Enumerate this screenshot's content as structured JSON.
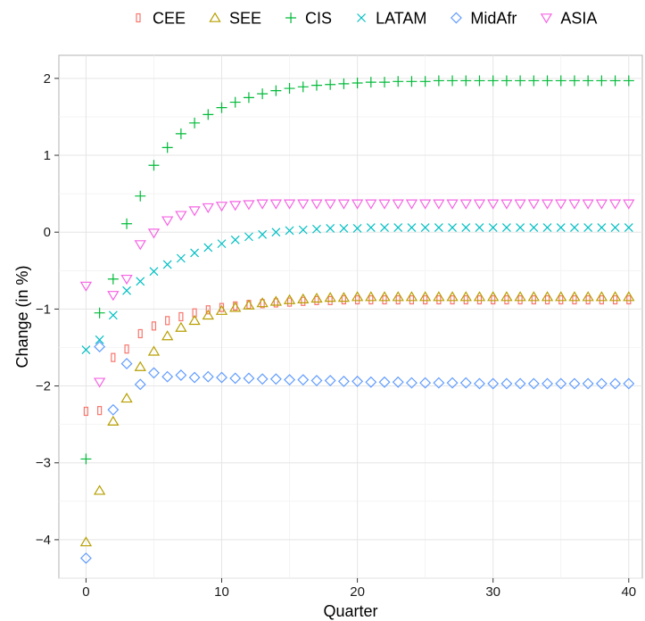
{
  "chart_data": {
    "type": "scatter",
    "title": "",
    "xlabel": "Quarter",
    "ylabel": "Change (in %)",
    "xlim": [
      -2,
      41
    ],
    "ylim": [
      -4.5,
      2.3
    ],
    "x_ticks": [
      0,
      10,
      20,
      30,
      40
    ],
    "y_ticks": [
      -4,
      -3,
      -2,
      -1,
      0,
      1,
      2
    ],
    "x_tick_labels": [
      "0",
      "10",
      "20",
      "30",
      "40"
    ],
    "y_tick_labels": [
      "−4",
      "−3",
      "−2",
      "−1",
      "0",
      "1",
      "2"
    ],
    "grid": true,
    "legend_position": "top",
    "x": [
      0,
      1,
      2,
      3,
      4,
      5,
      6,
      7,
      8,
      9,
      10,
      11,
      12,
      13,
      14,
      15,
      16,
      17,
      18,
      19,
      20,
      21,
      22,
      23,
      24,
      25,
      26,
      27,
      28,
      29,
      30,
      31,
      32,
      33,
      34,
      35,
      36,
      37,
      38,
      39,
      40
    ],
    "series": [
      {
        "name": "CEE",
        "marker": "bar",
        "color": "#f8766d",
        "values": [
          -2.33,
          -2.32,
          -1.63,
          -1.52,
          -1.32,
          -1.22,
          -1.15,
          -1.1,
          -1.05,
          -1.01,
          -0.98,
          -0.96,
          -0.94,
          -0.93,
          -0.92,
          -0.91,
          -0.9,
          -0.89,
          -0.89,
          -0.88,
          -0.88,
          -0.88,
          -0.88,
          -0.88,
          -0.88,
          -0.88,
          -0.88,
          -0.88,
          -0.88,
          -0.88,
          -0.88,
          -0.88,
          -0.88,
          -0.88,
          -0.88,
          -0.88,
          -0.88,
          -0.88,
          -0.88,
          -0.88,
          -0.88
        ]
      },
      {
        "name": "SEE",
        "marker": "triangle-up",
        "color": "#b79f00",
        "values": [
          -4.03,
          -3.36,
          -2.46,
          -2.16,
          -1.75,
          -1.55,
          -1.35,
          -1.24,
          -1.15,
          -1.08,
          -1.02,
          -0.98,
          -0.95,
          -0.92,
          -0.9,
          -0.88,
          -0.87,
          -0.86,
          -0.85,
          -0.85,
          -0.84,
          -0.84,
          -0.84,
          -0.84,
          -0.84,
          -0.84,
          -0.84,
          -0.84,
          -0.84,
          -0.84,
          -0.84,
          -0.84,
          -0.84,
          -0.84,
          -0.84,
          -0.84,
          -0.84,
          -0.84,
          -0.84,
          -0.84,
          -0.84
        ]
      },
      {
        "name": "CIS",
        "marker": "plus",
        "color": "#00ba38",
        "values": [
          -2.95,
          -1.05,
          -0.61,
          0.11,
          0.47,
          0.87,
          1.1,
          1.28,
          1.42,
          1.53,
          1.62,
          1.69,
          1.75,
          1.8,
          1.84,
          1.87,
          1.89,
          1.91,
          1.92,
          1.93,
          1.94,
          1.95,
          1.95,
          1.96,
          1.96,
          1.96,
          1.97,
          1.97,
          1.97,
          1.97,
          1.97,
          1.97,
          1.97,
          1.97,
          1.97,
          1.97,
          1.97,
          1.97,
          1.97,
          1.97,
          1.97
        ]
      },
      {
        "name": "LATAM",
        "marker": "cross",
        "color": "#00bfc4",
        "values": [
          -1.53,
          -1.4,
          -1.08,
          -0.76,
          -0.64,
          -0.51,
          -0.42,
          -0.34,
          -0.27,
          -0.2,
          -0.15,
          -0.1,
          -0.06,
          -0.03,
          0.0,
          0.02,
          0.03,
          0.04,
          0.05,
          0.05,
          0.05,
          0.06,
          0.06,
          0.06,
          0.06,
          0.06,
          0.06,
          0.06,
          0.06,
          0.06,
          0.06,
          0.06,
          0.06,
          0.06,
          0.06,
          0.06,
          0.06,
          0.06,
          0.06,
          0.06,
          0.06
        ]
      },
      {
        "name": "MidAfr",
        "marker": "diamond",
        "color": "#619cff",
        "values": [
          -4.24,
          -1.49,
          -2.31,
          -1.71,
          -1.98,
          -1.83,
          -1.88,
          -1.86,
          -1.89,
          -1.88,
          -1.89,
          -1.9,
          -1.9,
          -1.91,
          -1.91,
          -1.92,
          -1.92,
          -1.93,
          -1.93,
          -1.94,
          -1.94,
          -1.95,
          -1.95,
          -1.95,
          -1.96,
          -1.96,
          -1.96,
          -1.96,
          -1.96,
          -1.97,
          -1.97,
          -1.97,
          -1.97,
          -1.97,
          -1.97,
          -1.97,
          -1.97,
          -1.97,
          -1.97,
          -1.97,
          -1.97
        ]
      },
      {
        "name": "ASIA",
        "marker": "triangle-down",
        "color": "#f564e3",
        "values": [
          -0.7,
          -1.95,
          -0.82,
          -0.61,
          -0.16,
          -0.01,
          0.15,
          0.22,
          0.28,
          0.32,
          0.34,
          0.35,
          0.36,
          0.37,
          0.37,
          0.37,
          0.37,
          0.37,
          0.37,
          0.37,
          0.37,
          0.37,
          0.37,
          0.37,
          0.37,
          0.37,
          0.37,
          0.37,
          0.37,
          0.37,
          0.37,
          0.37,
          0.37,
          0.37,
          0.37,
          0.37,
          0.37,
          0.37,
          0.37,
          0.37,
          0.37
        ]
      }
    ]
  }
}
